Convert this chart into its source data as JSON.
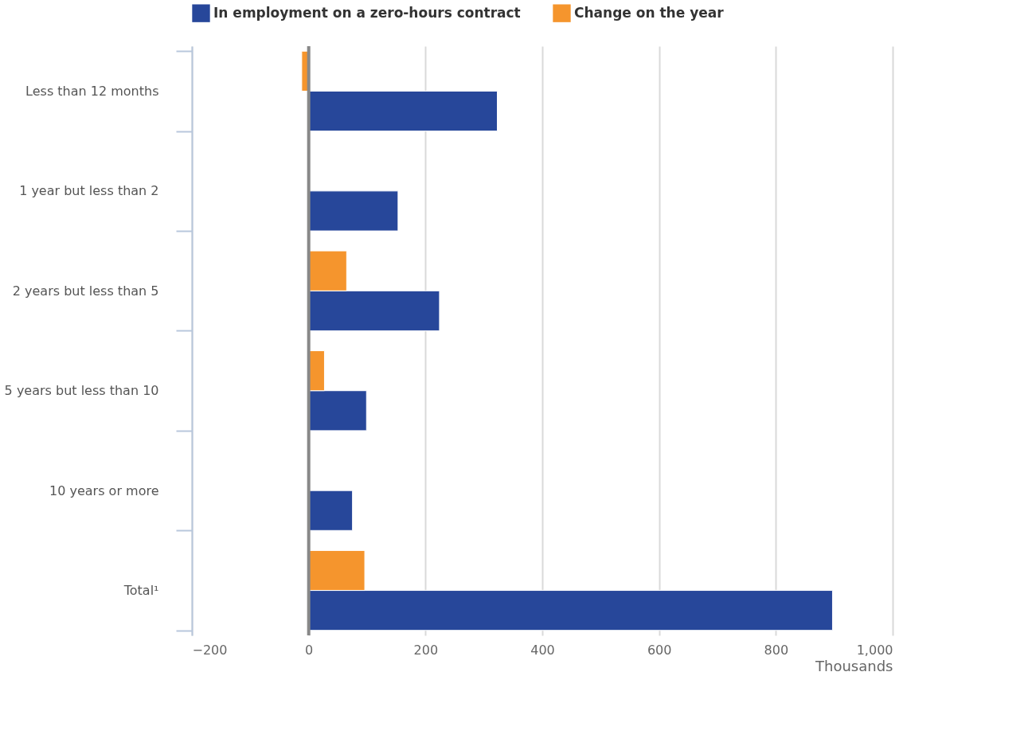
{
  "chart_data": {
    "type": "bar",
    "orientation": "horizontal",
    "categories": [
      "Less than 12 months",
      "1 year but less than 2",
      "2 years but less than 5",
      "5 years but less than 10",
      "10 years or more",
      "Total¹"
    ],
    "series": [
      {
        "name": "In employment on a zero-hours contract",
        "color": "#27479a",
        "values": [
          323,
          153,
          224,
          99,
          75,
          897
        ]
      },
      {
        "name": "Change on the year",
        "color": "#f5952d",
        "values": [
          -12,
          null,
          65,
          27,
          null,
          96
        ]
      }
    ],
    "xlabel": "Thousands",
    "xlim": [
      -200,
      1000
    ],
    "xticks": [
      -200,
      0,
      200,
      400,
      600,
      800,
      {
        "value": 1000,
        "label": "1,000"
      }
    ],
    "grid": "x",
    "legend": "top",
    "ref_lines": [
      {
        "axis": "x",
        "value": 0,
        "color": "#888888"
      }
    ]
  }
}
